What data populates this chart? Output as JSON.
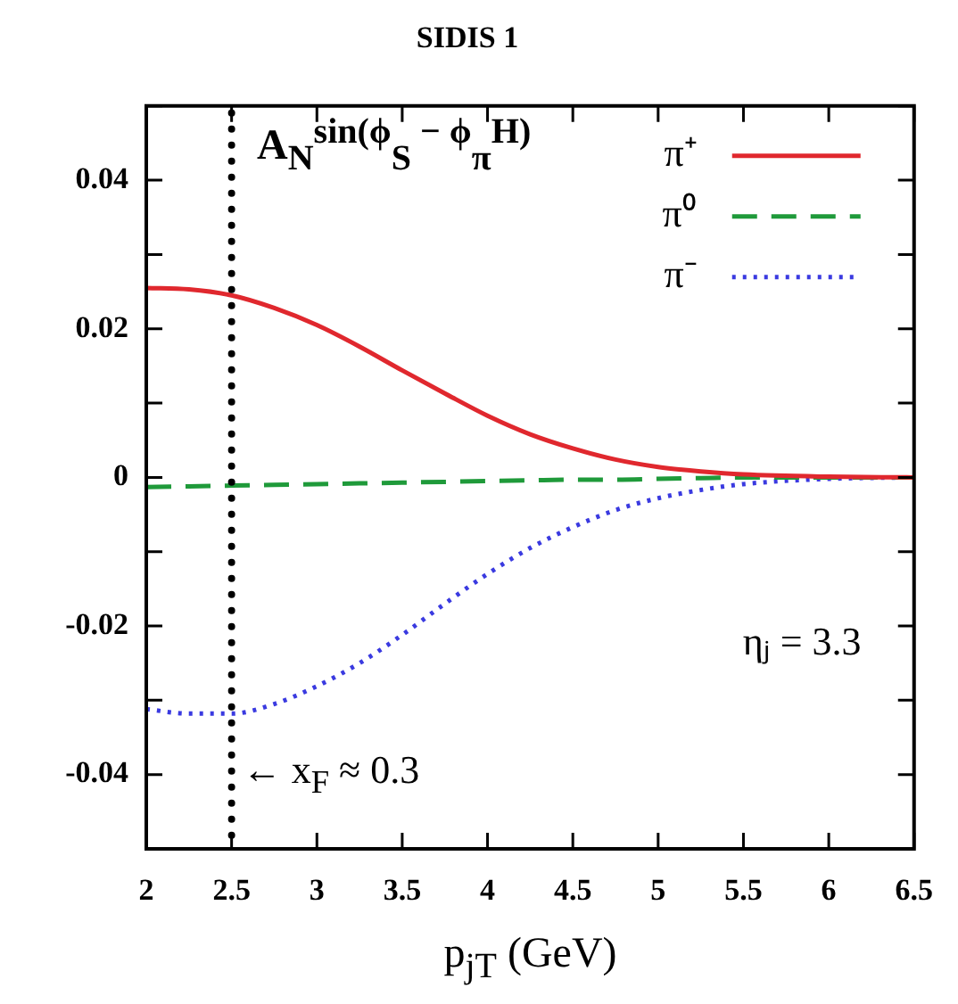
{
  "chart_data": {
    "type": "line",
    "title": "SIDIS 1",
    "xlabel": "p$_{jT}$ (GeV)",
    "ylabel": "A$_{N}$$^{sin(ϕ}$$_{S}$$^{ − ϕ}$$_{π}$$^{H)}$",
    "x": [
      2,
      2.25,
      2.5,
      2.75,
      3,
      3.25,
      3.5,
      3.75,
      4,
      4.25,
      4.5,
      4.75,
      5,
      5.25,
      5.5,
      6,
      6.5
    ],
    "series": [
      {
        "name": "π⁺",
        "color": "#e0282e",
        "line_style": "solid",
        "values": [
          0.0255,
          0.0253,
          0.0245,
          0.0228,
          0.0205,
          0.0176,
          0.0144,
          0.0113,
          0.0083,
          0.0058,
          0.0039,
          0.0024,
          0.0014,
          0.0008,
          0.0004,
          0.0001,
          0
        ]
      },
      {
        "name": "π⁰",
        "color": "#1f9a3a",
        "line_style": "dashed",
        "values": [
          -0.0013,
          -0.0012,
          -0.0011,
          -0.001,
          -0.0009,
          -0.0008,
          -0.0007,
          -0.0006,
          -0.0005,
          -0.0004,
          -0.0003,
          -0.0003,
          -0.0002,
          -0.0001,
          0,
          0,
          0
        ]
      },
      {
        "name": "π⁻",
        "color": "#3a3ae0",
        "line_style": "dotted",
        "values": [
          -0.0312,
          -0.0318,
          -0.0318,
          -0.0305,
          -0.0281,
          -0.025,
          -0.0212,
          -0.017,
          -0.013,
          -0.0095,
          -0.0067,
          -0.0044,
          -0.0028,
          -0.0017,
          -0.0009,
          -0.0002,
          0
        ]
      }
    ],
    "xlim": [
      2,
      6.5
    ],
    "xticks": [
      2,
      2.5,
      3,
      3.5,
      4,
      4.5,
      5,
      5.5,
      6,
      6.5
    ],
    "ylim": [
      -0.05,
      0.05
    ],
    "yticks": [
      {
        "value": -0.05,
        "label": null
      },
      -0.04,
      {
        "value": -0.03,
        "label": null
      },
      -0.02,
      {
        "value": -0.01,
        "label": null
      },
      0,
      {
        "value": 0.01,
        "label": null
      },
      0.02,
      {
        "value": 0.03,
        "label": null
      },
      0.04,
      {
        "value": 0.05,
        "label": null
      }
    ],
    "ref_lines": [
      {
        "axis": "x",
        "value": 2.5,
        "color": "#000000",
        "line_style": "dotted"
      }
    ],
    "annotations": [
      {
        "text": "← x$_{F}$ ≈ 0.3",
        "x": 2.5,
        "y": -0.04
      },
      "ηⱼ = 3.3"
    ],
    "legend": "top right",
    "marker": "none",
    "grid": false
  }
}
